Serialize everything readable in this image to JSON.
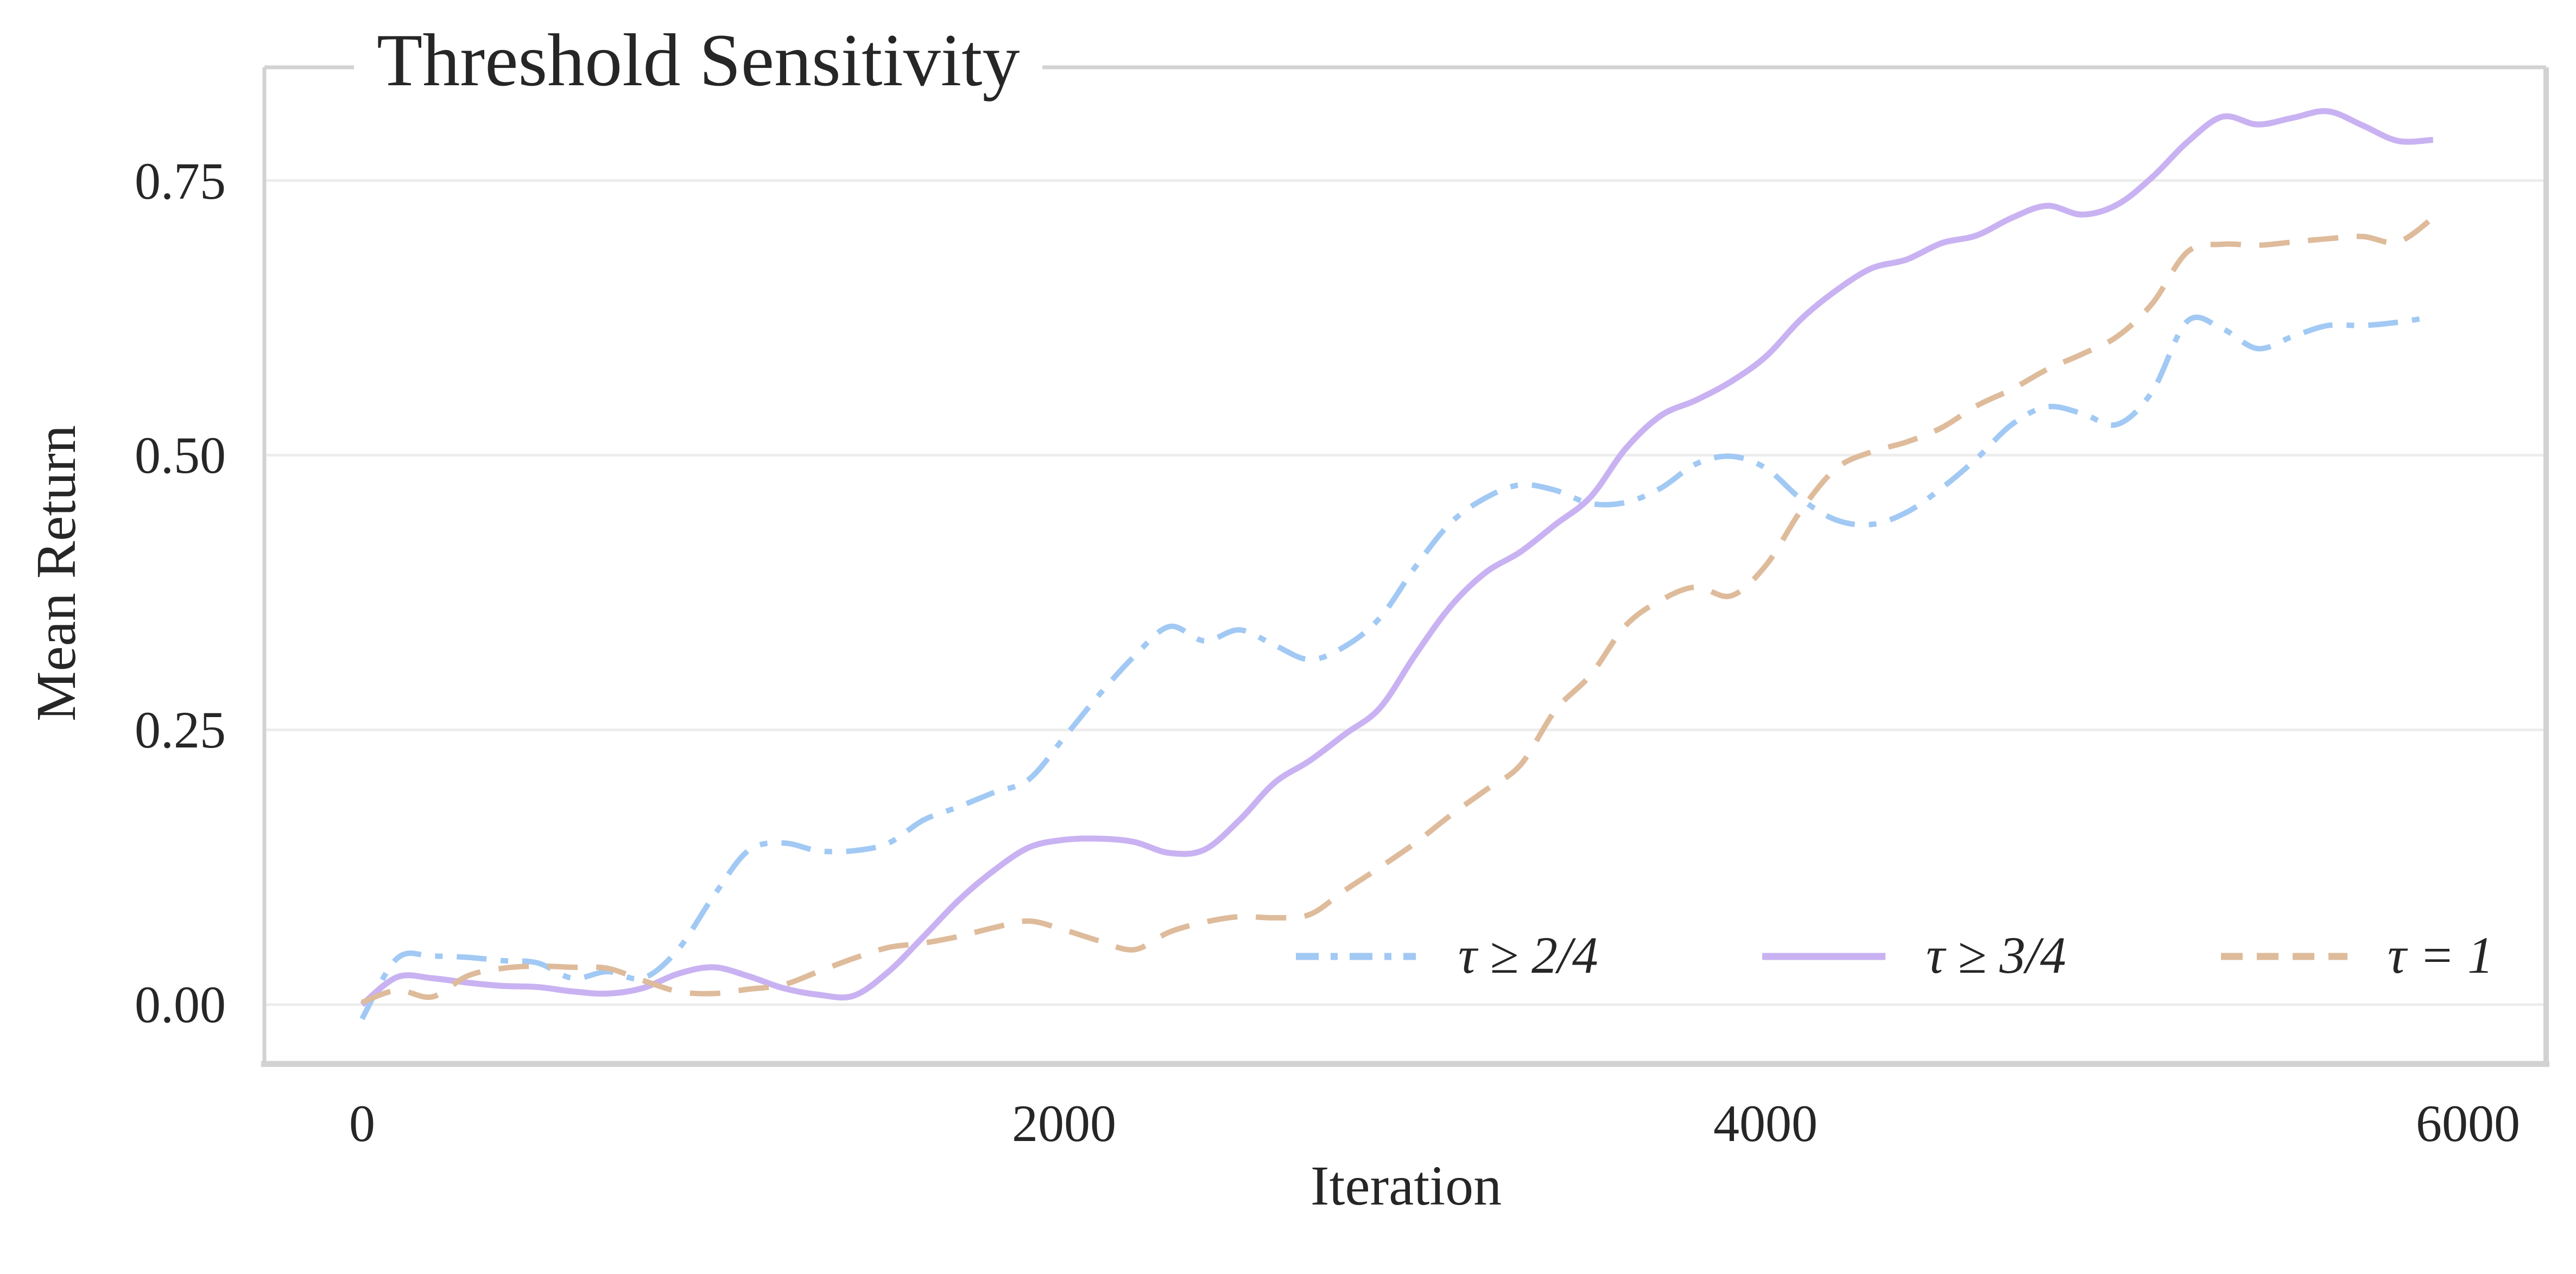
{
  "title": "Threshold Sensitivity",
  "axes": {
    "x_label": "Iteration",
    "y_label": "Mean Return",
    "x_tick_labels": [
      "0",
      "2000",
      "4000",
      "6000"
    ],
    "y_tick_labels": [
      "0.00",
      "0.25",
      "0.50",
      "0.75"
    ]
  },
  "legend": {
    "items": [
      {
        "label": "τ ≥ 2/4",
        "style": "dashdot",
        "color": "#a1c9f4"
      },
      {
        "label": "τ ≥ 3/4",
        "style": "solid",
        "color": "#c9b2f2"
      },
      {
        "label": "τ = 1",
        "style": "dashed",
        "color": "#debb9b"
      }
    ]
  },
  "colors": {
    "blue": "#a1c9f4",
    "purple": "#c9b2f2",
    "tan": "#debb9b",
    "grid": "#ededed",
    "spine": "#d2d2d2",
    "text": "#262626"
  },
  "chart_data": {
    "type": "line",
    "title": "Threshold Sensitivity",
    "xlabel": "Iteration",
    "ylabel": "Mean Return",
    "x_ticks": [
      0,
      2000,
      4000,
      6000
    ],
    "y_ticks": [
      0,
      0.25,
      0.5,
      0.75
    ],
    "xlim": [
      -278,
      6222
    ],
    "ylim": [
      -0.054,
      0.853
    ],
    "grid": true,
    "legend_position": "lower right inside axes, single row, no frame",
    "x": [
      0,
      100,
      200,
      300,
      400,
      500,
      600,
      700,
      800,
      900,
      1000,
      1100,
      1200,
      1300,
      1400,
      1500,
      1600,
      1700,
      1800,
      1900,
      2000,
      2100,
      2200,
      2300,
      2400,
      2500,
      2600,
      2700,
      2800,
      2900,
      3000,
      3100,
      3200,
      3300,
      3400,
      3500,
      3600,
      3700,
      3800,
      3900,
      4000,
      4100,
      4200,
      4300,
      4400,
      4500,
      4600,
      4700,
      4800,
      4900,
      5000,
      5100,
      5200,
      5300,
      5400,
      5500,
      5600,
      5700,
      5800,
      5900
    ],
    "series": [
      {
        "name": "τ ≥ 2/4",
        "color": "#a1c9f4",
        "linestyle": "dashdot",
        "values": [
          -0.013,
          0.042,
          0.044,
          0.043,
          0.04,
          0.038,
          0.024,
          0.03,
          0.024,
          0.05,
          0.098,
          0.14,
          0.147,
          0.14,
          0.14,
          0.147,
          0.168,
          0.18,
          0.193,
          0.205,
          0.243,
          0.282,
          0.317,
          0.344,
          0.331,
          0.341,
          0.327,
          0.314,
          0.326,
          0.352,
          0.398,
          0.438,
          0.461,
          0.473,
          0.468,
          0.456,
          0.457,
          0.47,
          0.492,
          0.499,
          0.488,
          0.46,
          0.441,
          0.437,
          0.448,
          0.47,
          0.497,
          0.528,
          0.544,
          0.538,
          0.528,
          0.558,
          0.622,
          0.615,
          0.597,
          0.608,
          0.618,
          0.618,
          0.621,
          0.626
        ]
      },
      {
        "name": "τ ≥ 3/4",
        "color": "#c9b2f2",
        "linestyle": "solid",
        "values": [
          0.0,
          0.025,
          0.024,
          0.02,
          0.017,
          0.016,
          0.012,
          0.01,
          0.015,
          0.028,
          0.034,
          0.026,
          0.015,
          0.009,
          0.008,
          0.03,
          0.062,
          0.095,
          0.122,
          0.143,
          0.15,
          0.151,
          0.148,
          0.138,
          0.141,
          0.168,
          0.202,
          0.222,
          0.246,
          0.27,
          0.318,
          0.362,
          0.393,
          0.412,
          0.437,
          0.462,
          0.506,
          0.536,
          0.55,
          0.567,
          0.59,
          0.624,
          0.65,
          0.67,
          0.678,
          0.693,
          0.7,
          0.716,
          0.727,
          0.719,
          0.728,
          0.753,
          0.785,
          0.808,
          0.801,
          0.807,
          0.813,
          0.8,
          0.786,
          0.787
        ]
      },
      {
        "name": "τ = 1",
        "color": "#debb9b",
        "linestyle": "dashed",
        "values": [
          0.002,
          0.013,
          0.007,
          0.026,
          0.033,
          0.035,
          0.034,
          0.033,
          0.022,
          0.012,
          0.01,
          0.014,
          0.018,
          0.03,
          0.042,
          0.052,
          0.056,
          0.062,
          0.07,
          0.076,
          0.068,
          0.058,
          0.05,
          0.066,
          0.075,
          0.08,
          0.079,
          0.082,
          0.104,
          0.125,
          0.147,
          0.172,
          0.195,
          0.218,
          0.268,
          0.3,
          0.345,
          0.368,
          0.38,
          0.372,
          0.4,
          0.45,
          0.488,
          0.503,
          0.512,
          0.525,
          0.545,
          0.56,
          0.578,
          0.592,
          0.608,
          0.638,
          0.685,
          0.692,
          0.691,
          0.694,
          0.697,
          0.699,
          0.694,
          0.716
        ]
      }
    ]
  }
}
